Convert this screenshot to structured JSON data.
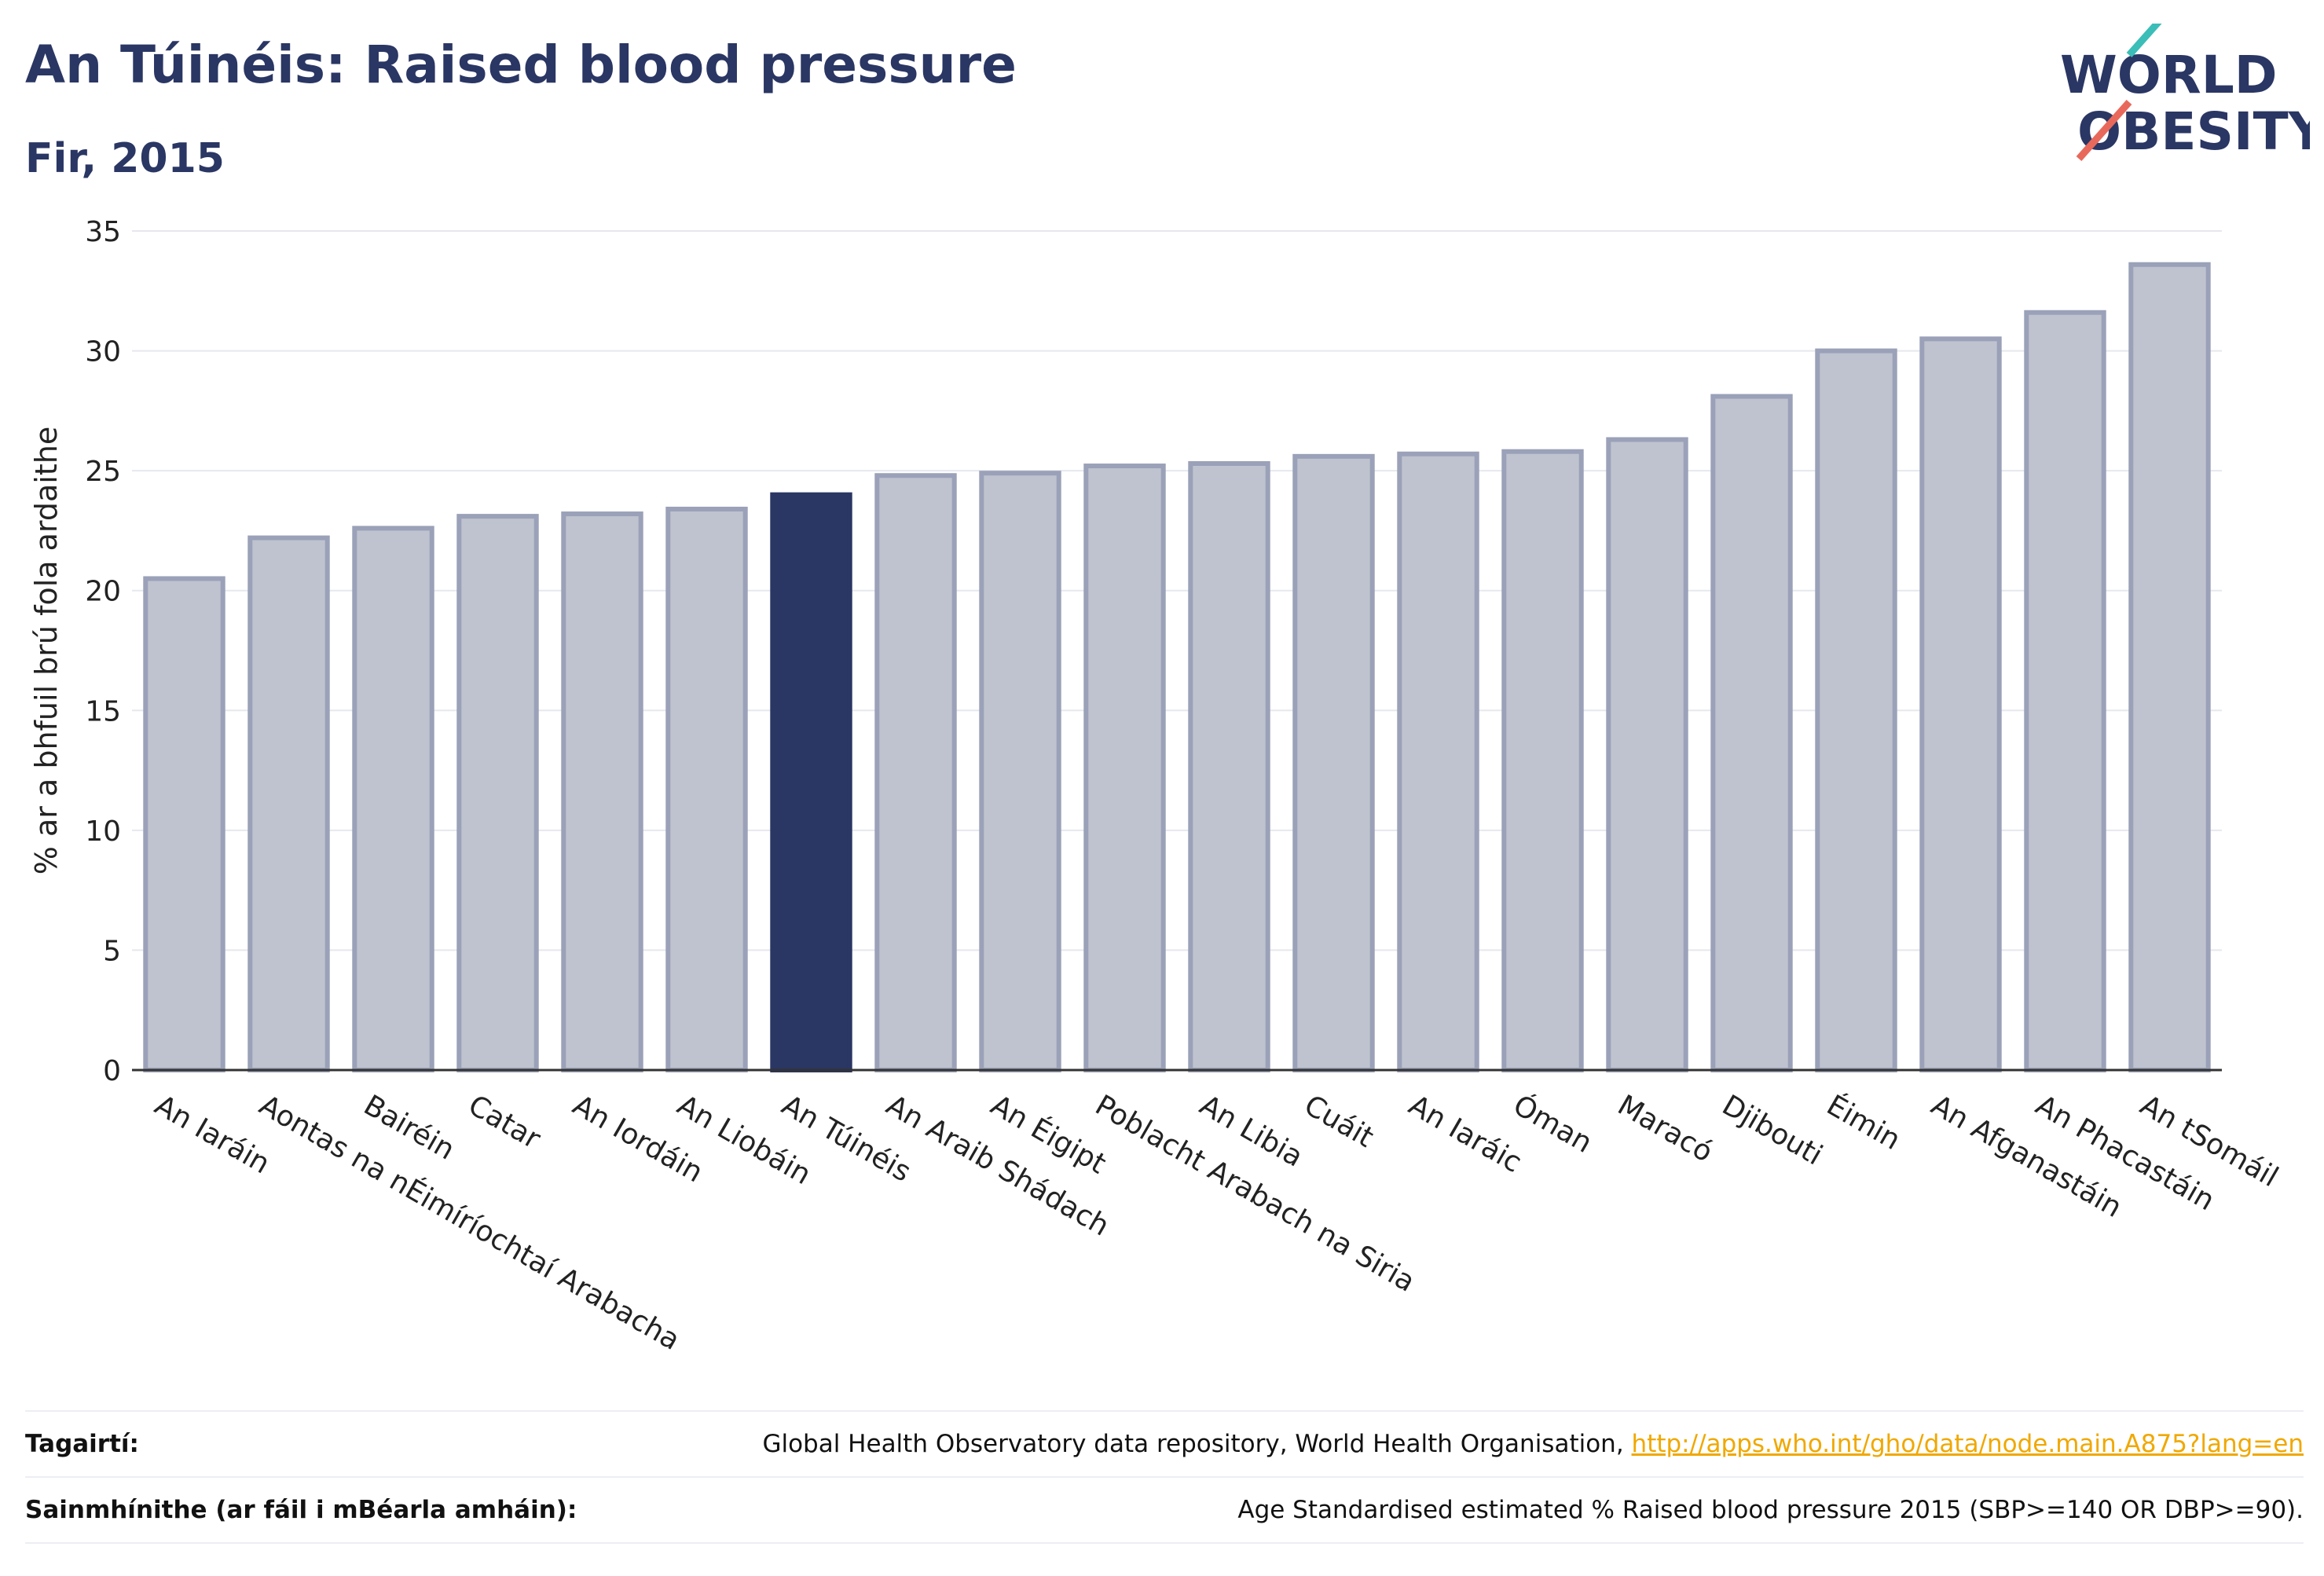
{
  "header": {
    "title": "An Túinéis: Raised blood pressure",
    "subtitle": "Fir, 2015"
  },
  "logo": {
    "line1": "WORLD",
    "line2": "OBESITY"
  },
  "colors": {
    "highlight": "#2a3663",
    "bar_fill": "#bfc3cf",
    "bar_stroke": "#9aa1b8",
    "text": "#2a3663",
    "link": "#f0a800",
    "logo_teal": "#3bbdb8",
    "logo_coral": "#e8695b"
  },
  "chart_data": {
    "type": "bar",
    "ylabel": "% ar a bhfuil brú fola ardaithe",
    "ylim": [
      0,
      35
    ],
    "yticks": [
      0,
      5,
      10,
      15,
      20,
      25,
      30,
      35
    ],
    "grid": true,
    "highlight": "An Túinéis",
    "categories": [
      "An Iaráin",
      "Aontas na nÉimíríochtaí Arabacha",
      "Bairéin",
      "Catar",
      "An Iordáin",
      "An Liobáin",
      "An Túinéis",
      "An Araib Shádach",
      "An Éigipt",
      "Poblacht Arabach na Siria",
      "An Libia",
      "Cuáit",
      "An Iaráic",
      "Óman",
      "Maracó",
      "Djibouti",
      "Éimin",
      "An Afganastáin",
      "An Phacastáin",
      "An tSomáil"
    ],
    "values": [
      20.5,
      22.2,
      22.6,
      23.1,
      23.2,
      23.4,
      24.0,
      24.8,
      24.9,
      25.2,
      25.3,
      25.6,
      25.7,
      25.8,
      26.3,
      28.1,
      30.0,
      30.5,
      31.6,
      33.6
    ]
  },
  "footer": {
    "references_label": "Tagairtí:",
    "references_text": "Global Health Observatory data repository, World Health Organisation,",
    "references_link": "http://apps.who.int/gho/data/node.main.A875?lang=en",
    "definitions_label": "Sainmhínithe (ar fáil i mBéarla amháin):",
    "definitions_text": "Age Standardised estimated % Raised blood pressure 2015 (SBP>=140 OR DBP>=90)."
  }
}
